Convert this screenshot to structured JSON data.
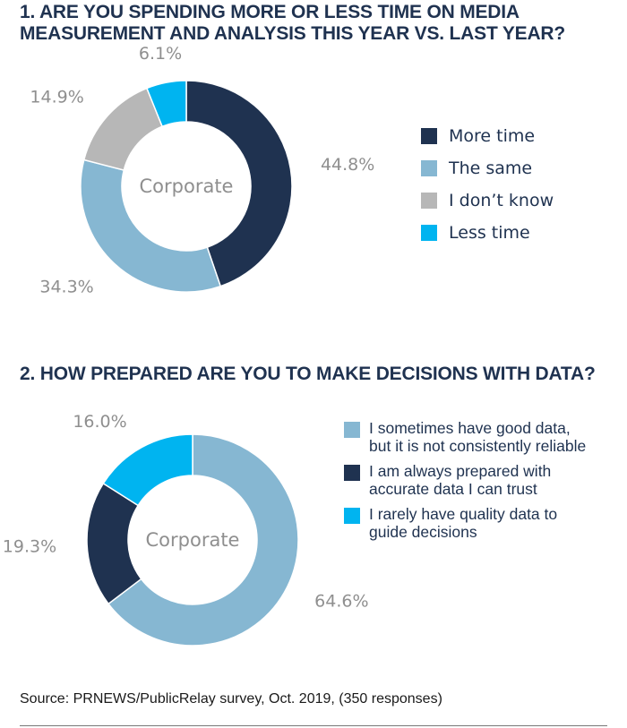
{
  "chart_data": [
    {
      "type": "donut",
      "title": "1. ARE YOU SPENDING MORE OR LESS TIME ON MEDIA MEASUREMENT AND ANALYSIS THIS YEAR VS. LAST YEAR?",
      "center_label": "Corporate",
      "slices": [
        {
          "label": "More time",
          "value": 44.8,
          "display": "44.8%",
          "color": "#1f3250"
        },
        {
          "label": "The same",
          "value": 34.3,
          "display": "34.3%",
          "color": "#86b7d2"
        },
        {
          "label": "I don’t know",
          "value": 14.9,
          "display": "14.9%",
          "color": "#b7b7b7"
        },
        {
          "label": "Less time",
          "value": 6.1,
          "display": "6.1%",
          "color": "#00b4f0"
        }
      ],
      "legend": [
        {
          "label": "More time",
          "color": "#1f3250"
        },
        {
          "label": "The same",
          "color": "#86b7d2"
        },
        {
          "label": "I don’t know",
          "color": "#b7b7b7"
        },
        {
          "label": "Less time",
          "color": "#00b4f0"
        }
      ],
      "legend_position": "right"
    },
    {
      "type": "donut",
      "title": "2. HOW PREPARED ARE YOU TO MAKE DECISIONS WITH DATA?",
      "center_label": "Corporate",
      "slices": [
        {
          "label": "I sometimes have good data, but it is not consistently reliable",
          "value": 64.6,
          "display": "64.6%",
          "color": "#86b7d2"
        },
        {
          "label": "I am always prepared with accurate data I can trust",
          "value": 19.3,
          "display": "19.3%",
          "color": "#1f3250"
        },
        {
          "label": "I rarely have quality data to guide decisions",
          "value": 16.0,
          "display": "16.0%",
          "color": "#00b4f0"
        }
      ],
      "legend": [
        {
          "label": "I sometimes have good data,\nbut it is not consistently reliable",
          "color": "#86b7d2"
        },
        {
          "label": "I am always prepared with\naccurate data I can trust",
          "color": "#1f3250"
        },
        {
          "label": "I rarely have quality data to\nguide decisions",
          "color": "#00b4f0"
        }
      ],
      "legend_position": "right"
    }
  ],
  "source": "Source: PRNEWS/PublicRelay survey, Oct. 2019, (350 responses)",
  "colors": {
    "title": "#1f3250",
    "pct_label": "#8f8f8f",
    "center_label": "#8f8f8f"
  }
}
